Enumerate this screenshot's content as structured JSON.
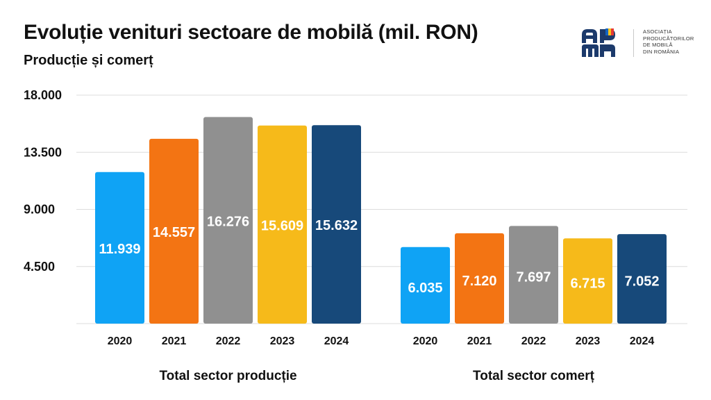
{
  "title": "Evoluție venituri sectoare de mobilă (mil. RON)",
  "subtitle": "Producție și comerț",
  "logo": {
    "text_lines": [
      "ASOCIAȚIA",
      "PRODUCĂTORILOR",
      "DE MOBILĂ",
      "DIN ROMÂNIA"
    ]
  },
  "chart_data": {
    "type": "bar",
    "title": "Evoluție venituri sectoare de mobilă (mil. RON)",
    "subtitle": "Producție și comerț",
    "ylim": [
      0,
      18000
    ],
    "yticks": [
      4500,
      9000,
      13500,
      18000
    ],
    "ytick_labels": [
      "4.500",
      "9.000",
      "13.500",
      "18.000"
    ],
    "grid": true,
    "legend": "none",
    "groups": [
      {
        "name": "Total sector producție",
        "categories": [
          "2020",
          "2021",
          "2022",
          "2023",
          "2024"
        ],
        "values": [
          11939,
          14557,
          16276,
          15609,
          15632
        ],
        "value_labels": [
          "11.939",
          "14.557",
          "16.276",
          "15.609",
          "15.632"
        ]
      },
      {
        "name": "Total sector comerț",
        "categories": [
          "2020",
          "2021",
          "2022",
          "2023",
          "2024"
        ],
        "values": [
          6035,
          7120,
          7697,
          6715,
          7052
        ],
        "value_labels": [
          "6.035",
          "7.120",
          "7.697",
          "6.715",
          "7.052"
        ]
      }
    ],
    "colors": [
      "#0fa3f5",
      "#f37413",
      "#909090",
      "#f6ba1a",
      "#17497a"
    ]
  }
}
